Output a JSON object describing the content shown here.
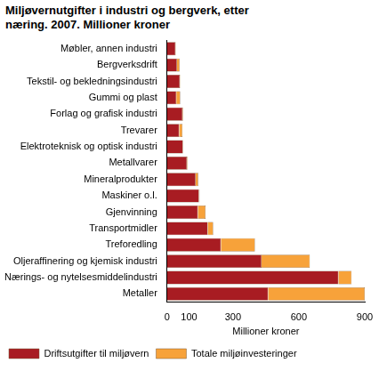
{
  "chart_data": {
    "type": "bar",
    "orientation": "horizontal",
    "stacked": true,
    "title": "Miljøvernutgifter i industri og bergverk, etter næring. 2007. Millioner kroner",
    "x_label": "Millioner kroner",
    "categories": [
      "Møbler, annen industri",
      "Bergverksdrift",
      "Tekstil- og bekledningsindustri",
      "Gummi og plast",
      "Forlag og grafisk industri",
      "Trevarer",
      "Elektroteknisk og optisk industri",
      "Metallvarer",
      "Mineralprodukter",
      "Maskiner o.l.",
      "Gjenvinning",
      "Transportmidler",
      "Treforedling",
      "Oljeraffinering og kjemisk industri",
      "Nærings- og nytelsesmiddelindustri",
      "Metaller"
    ],
    "series": [
      {
        "name": "Driftsutgifter til miljøvern",
        "color": "#a81c22",
        "values": [
          38,
          45,
          58,
          42,
          70,
          55,
          72,
          90,
          130,
          145,
          140,
          185,
          245,
          430,
          780,
          460
        ]
      },
      {
        "name": "Totale miljøinvesteringer",
        "color": "#f7a23a",
        "values": [
          2,
          12,
          2,
          18,
          3,
          15,
          2,
          3,
          12,
          3,
          35,
          25,
          155,
          220,
          60,
          440
        ]
      }
    ],
    "xlim": [
      0,
      900
    ],
    "xticks": [
      0,
      100,
      300,
      600,
      900
    ],
    "grid": false,
    "legend": "bottom"
  }
}
